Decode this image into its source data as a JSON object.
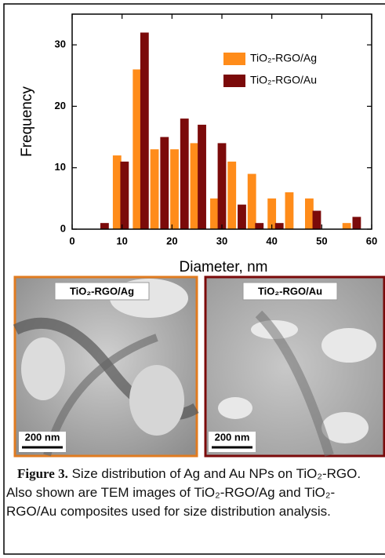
{
  "chart_data": {
    "type": "bar",
    "x_label": "Diameter, nm",
    "y_label": "Frequency",
    "xlim": [
      0,
      60
    ],
    "xticks": [
      0,
      10,
      20,
      30,
      40,
      50,
      60
    ],
    "ylim": [
      0,
      35
    ],
    "yticks": [
      0,
      10,
      20,
      30
    ],
    "legend": "upper right",
    "series": [
      {
        "name": "TiO₂-RGO/Ag",
        "color": "#ff8c1a",
        "x": [
          9,
          13,
          16.5,
          20.5,
          24.5,
          28.5,
          32,
          36,
          40,
          43.5,
          47.5,
          55
        ],
        "values": [
          12,
          26,
          13,
          13,
          14,
          5,
          11,
          9,
          5,
          6,
          5,
          1
        ]
      },
      {
        "name": "TiO₂-RGO/Au",
        "color": "#7b0a0a",
        "x": [
          6.5,
          10.5,
          14.5,
          18.5,
          22.5,
          26,
          30,
          34,
          37.5,
          41.5,
          49,
          57
        ],
        "values": [
          1,
          11,
          32,
          15,
          18,
          17,
          14,
          4,
          1,
          1,
          3,
          2
        ]
      }
    ]
  },
  "panels": [
    {
      "label": "TiO₂-RGO/Ag",
      "scale": "200 nm"
    },
    {
      "label": "TiO₂-RGO/Au",
      "scale": "200 nm"
    }
  ],
  "caption": {
    "label": "Figure 3.",
    "text": "Size distribution of Ag and Au NPs on TiO₂-RGO. Also shown are TEM images of TiO₂-RGO/Ag and TiO₂-RGO/Au composites used for size distribution analysis."
  }
}
